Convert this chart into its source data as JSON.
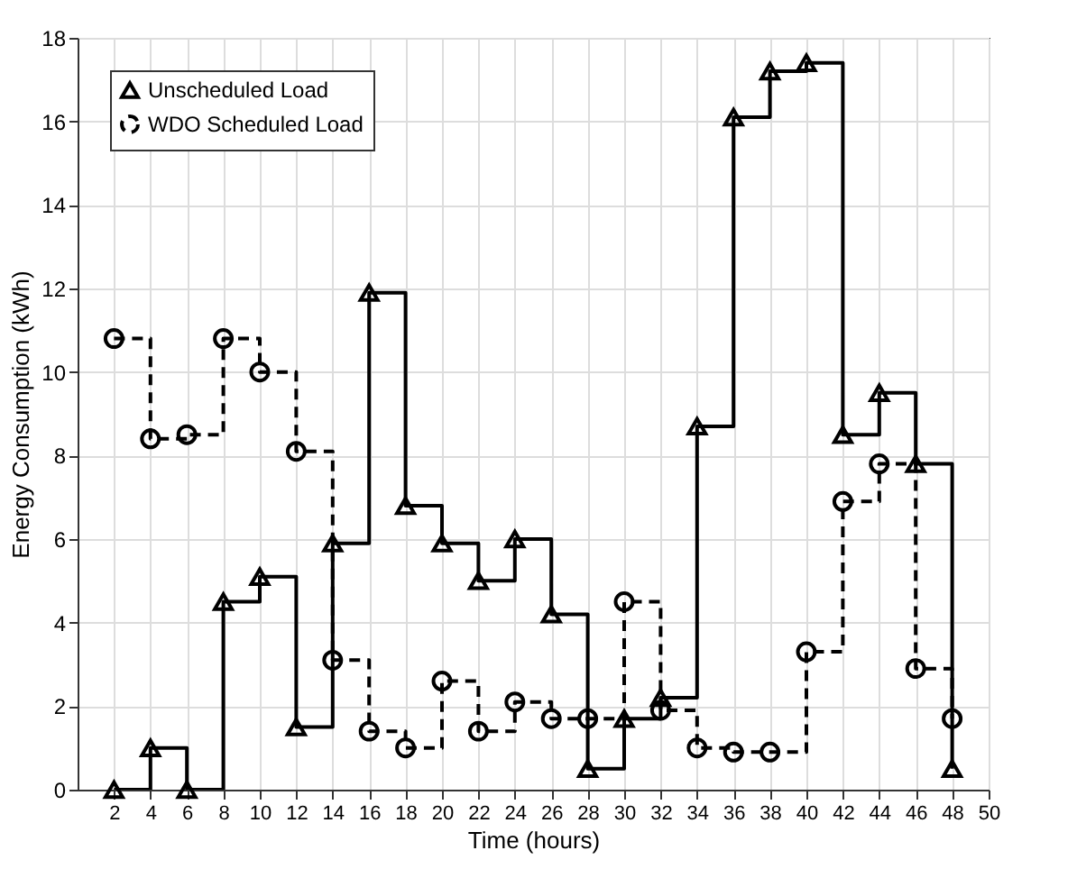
{
  "chart_data": {
    "type": "step",
    "xlabel": "Time (hours)",
    "ylabel": "Energy Consumption (kWh)",
    "x": [
      2,
      4,
      6,
      8,
      10,
      12,
      14,
      16,
      18,
      20,
      22,
      24,
      26,
      28,
      30,
      32,
      34,
      36,
      38,
      40,
      42,
      44,
      46,
      48
    ],
    "series": [
      {
        "name": "Unscheduled Load",
        "color": "#000000",
        "marker": "triangle",
        "line_style": "solid",
        "values": [
          0,
          1,
          0,
          4.5,
          5.1,
          1.5,
          5.9,
          11.9,
          6.8,
          5.9,
          5.0,
          6.0,
          4.2,
          0.5,
          1.7,
          2.2,
          8.7,
          16.1,
          17.2,
          17.4,
          8.5,
          9.5,
          7.8,
          0.5
        ]
      },
      {
        "name": "WDO Scheduled Load",
        "color": "#000000",
        "marker": "circle",
        "line_style": "dashed",
        "values": [
          10.8,
          8.4,
          8.5,
          10.8,
          10.0,
          8.1,
          3.1,
          1.4,
          1.0,
          2.6,
          1.4,
          2.1,
          1.7,
          1.7,
          4.5,
          1.9,
          1.0,
          0.9,
          0.9,
          3.3,
          6.9,
          7.8,
          2.9,
          1.7
        ]
      }
    ],
    "xlim": [
      0,
      50
    ],
    "xticks": [
      2,
      4,
      6,
      8,
      10,
      12,
      14,
      16,
      18,
      20,
      22,
      24,
      26,
      28,
      30,
      32,
      34,
      36,
      38,
      40,
      42,
      44,
      46,
      48,
      50
    ],
    "ylim": [
      0,
      18
    ],
    "yticks": [
      0,
      2,
      4,
      6,
      8,
      10,
      12,
      14,
      16,
      18
    ],
    "grid": true,
    "legend": "top left"
  }
}
